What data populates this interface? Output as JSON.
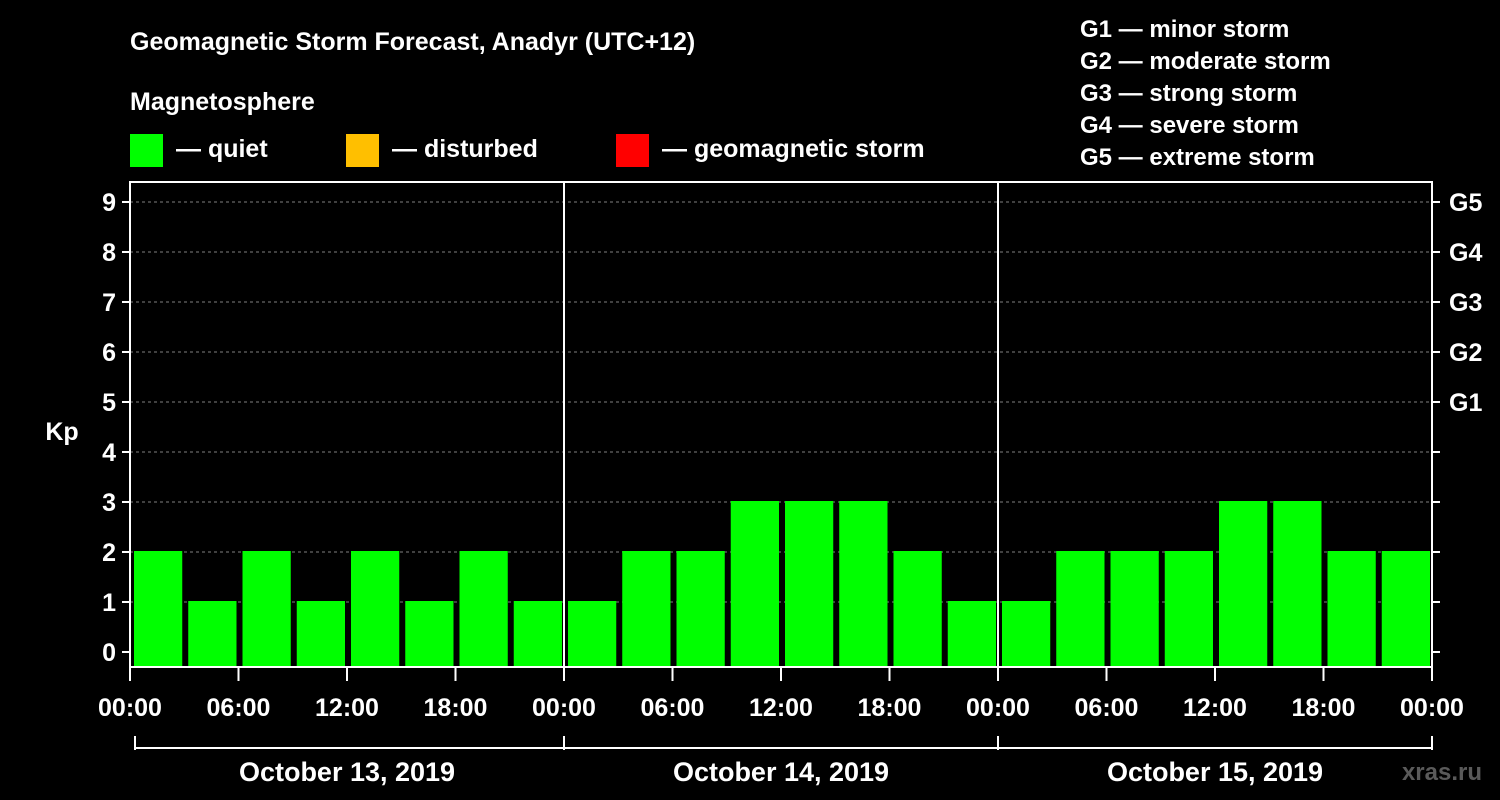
{
  "chart_data": {
    "type": "bar",
    "title": "Geomagnetic Storm Forecast, Anadyr (UTC+12)",
    "legend_title": "Magnetosphere",
    "legend": [
      {
        "label": "— quiet",
        "color": "#00ff00"
      },
      {
        "label": "— disturbed",
        "color": "#ffbf00"
      },
      {
        "label": "— geomagnetic storm",
        "color": "#ff0000"
      }
    ],
    "storm_scale": [
      "G1 — minor storm",
      "G2 — moderate storm",
      "G3 — strong storm",
      "G4 — severe storm",
      "G5 — extreme storm"
    ],
    "ylabel": "Kp",
    "ylim": [
      0,
      9
    ],
    "yticks": [
      "0",
      "1",
      "2",
      "3",
      "4",
      "5",
      "6",
      "7",
      "8",
      "9"
    ],
    "right_ticks": [
      {
        "kp": 5,
        "label": "G1"
      },
      {
        "kp": 6,
        "label": "G2"
      },
      {
        "kp": 7,
        "label": "G3"
      },
      {
        "kp": 8,
        "label": "G4"
      },
      {
        "kp": 9,
        "label": "G5"
      }
    ],
    "xticks": [
      "00:00",
      "06:00",
      "12:00",
      "18:00",
      "00:00",
      "06:00",
      "12:00",
      "18:00",
      "00:00",
      "06:00",
      "12:00",
      "18:00",
      "00:00"
    ],
    "days": [
      "October 13, 2019",
      "October 14, 2019",
      "October 15, 2019"
    ],
    "values": [
      2,
      1,
      2,
      1,
      2,
      1,
      2,
      1,
      1,
      2,
      2,
      3,
      3,
      3,
      2,
      1,
      1,
      2,
      2,
      2,
      3,
      3,
      2,
      2
    ],
    "colors": {
      "quiet": "#00ff00",
      "disturbed": "#ffbf00",
      "storm": "#ff0000"
    },
    "grid": true
  },
  "watermark": "xras.ru"
}
